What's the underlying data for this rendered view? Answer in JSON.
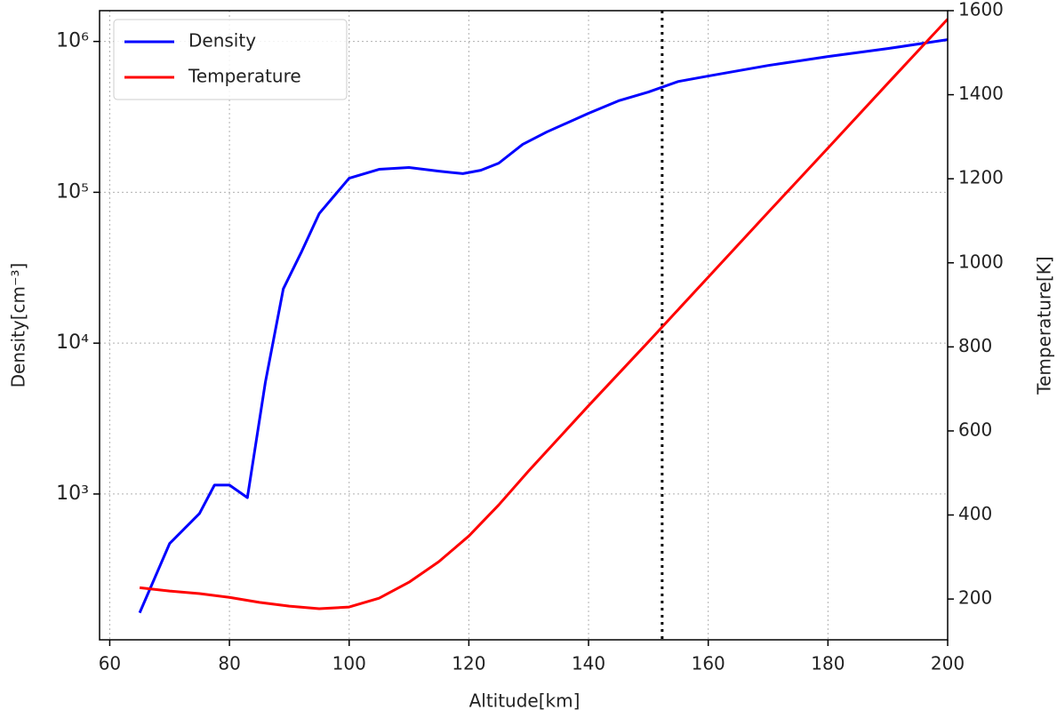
{
  "chart_data": {
    "type": "line",
    "xlabel": "Altitude[km]",
    "ylabel": "Density[cm⁻³]",
    "y2label": "Temperature[K]",
    "xlim": [
      58.3,
      200
    ],
    "xticks": [
      60,
      80,
      100,
      120,
      140,
      160,
      180,
      200
    ],
    "ylim": [
      108,
      1600000
    ],
    "yscale": "log",
    "yticks": [
      {
        "value": 1000,
        "label": "10³"
      },
      {
        "value": 10000,
        "label": "10⁴"
      },
      {
        "value": 100000,
        "label": "10⁵"
      },
      {
        "value": 1000000,
        "label": "10⁶"
      }
    ],
    "y2lim": [
      103,
      1600
    ],
    "y2ticks": [
      200,
      400,
      600,
      800,
      1000,
      1200,
      1400,
      1600
    ],
    "grid": true,
    "legend": "upper left",
    "vline": {
      "x": 152.3,
      "color": "#000000",
      "style": "dotted"
    },
    "series": [
      {
        "name": "Density",
        "color": "#0000ff",
        "axis": "y",
        "x": [
          65,
          70,
          75,
          77.5,
          80,
          83,
          86,
          89,
          92,
          95,
          100,
          105,
          110,
          115,
          119,
          122,
          125,
          129,
          133,
          140,
          145,
          150,
          155,
          160,
          170,
          180,
          190,
          200
        ],
        "values": [
          163,
          469,
          743,
          1146,
          1146,
          946,
          5500,
          22900,
          40000,
          72300,
          124000,
          142000,
          146000,
          138000,
          133000,
          140000,
          156000,
          208000,
          251000,
          334000,
          404000,
          462000,
          543000,
          590000,
          693000,
          794000,
          897000,
          1028000
        ]
      },
      {
        "name": "Temperature",
        "color": "#ff0000",
        "axis": "y2",
        "x": [
          65,
          70,
          75,
          80,
          85,
          90,
          95,
          100,
          105,
          110,
          115,
          120,
          125,
          130,
          140,
          150,
          160,
          170,
          180,
          190,
          200
        ],
        "values": [
          227,
          219,
          213,
          204,
          192,
          183,
          177,
          181,
          202,
          240,
          289,
          350,
          424,
          505,
          660,
          812,
          966,
          1120,
          1273,
          1427,
          1580
        ]
      }
    ]
  }
}
